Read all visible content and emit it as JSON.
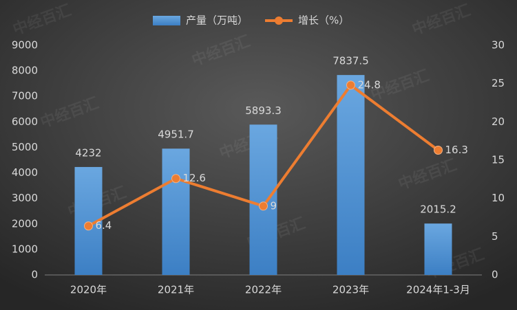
{
  "chart_data": {
    "type": "bar-line",
    "watermark": "中经百汇",
    "categories": [
      "2020年",
      "2021年",
      "2022年",
      "2023年",
      "2024年1-3月"
    ],
    "series": [
      {
        "name": "产量（万吨）",
        "type": "bar",
        "color": "#5b9bd5",
        "values": [
          4232,
          4951.7,
          5893.3,
          7837.5,
          2015.2
        ]
      },
      {
        "name": "增长（%）",
        "type": "line",
        "axis": "y2",
        "color": "#ed7d31",
        "values": [
          6.4,
          12.6,
          9,
          24.8,
          16.3
        ]
      }
    ],
    "ylim": [
      0,
      9000
    ],
    "yticks": [
      0,
      1000,
      2000,
      3000,
      4000,
      5000,
      6000,
      7000,
      8000,
      9000
    ],
    "y2lim": [
      0,
      30
    ],
    "y2ticks": [
      0,
      5,
      10,
      15,
      20,
      25,
      30
    ],
    "grid": false,
    "legend": "top"
  }
}
